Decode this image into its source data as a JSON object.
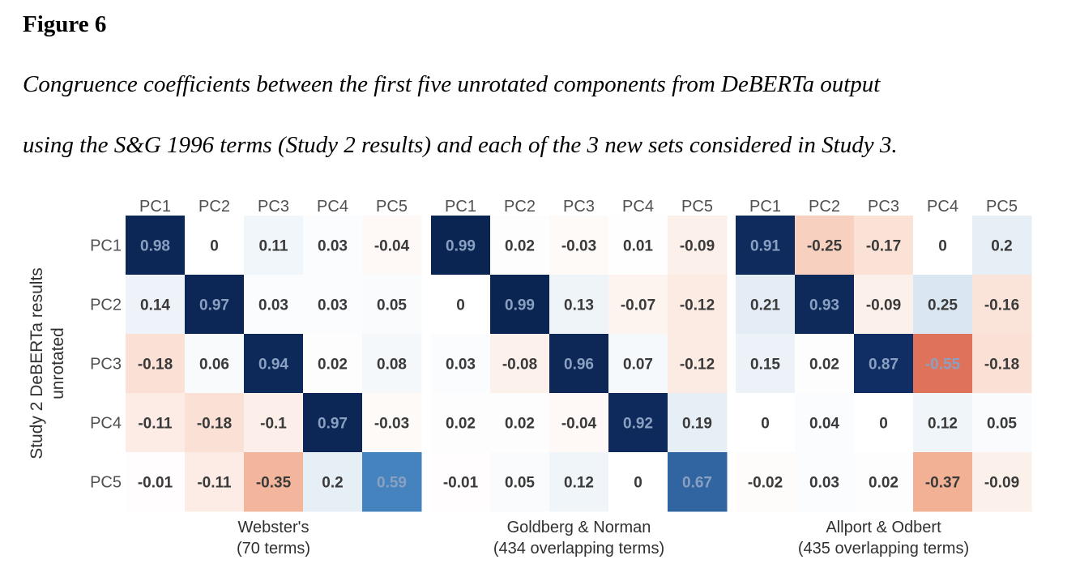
{
  "figure_label": "Figure 6",
  "caption_line1": "Congruence coefficients between the first five unrotated components from DeBERTa output",
  "caption_line2": "using the S&G 1996 terms (Study 2 results) and each of the 3 new sets considered in Study 3.",
  "chart_data": {
    "type": "heatmap",
    "y_axis_label_line1": "Study 2 DeBERTa results",
    "y_axis_label_line2": "unrotated",
    "row_labels": [
      "PC1",
      "PC2",
      "PC3",
      "PC4",
      "PC5"
    ],
    "col_labels": [
      "PC1",
      "PC2",
      "PC3",
      "PC4",
      "PC5"
    ],
    "color_scale": {
      "negative": "#c8442f",
      "zero": "#ffffff",
      "positive": "#0b2452"
    },
    "panels": [
      {
        "name_line1": "Webster's",
        "name_line2": "(70 terms)",
        "values": [
          [
            0.98,
            0,
            0.11,
            0.03,
            -0.04
          ],
          [
            0.14,
            0.97,
            0.03,
            0.03,
            0.05
          ],
          [
            -0.18,
            0.06,
            0.94,
            0.02,
            0.08
          ],
          [
            -0.11,
            -0.18,
            -0.1,
            0.97,
            -0.03
          ],
          [
            -0.01,
            -0.11,
            -0.35,
            0.2,
            0.59
          ]
        ]
      },
      {
        "name_line1": "Goldberg & Norman",
        "name_line2": "(434 overlapping terms)",
        "values": [
          [
            0.99,
            0.02,
            -0.03,
            0.01,
            -0.09
          ],
          [
            0,
            0.99,
            0.13,
            -0.07,
            -0.12
          ],
          [
            0.03,
            -0.08,
            0.96,
            0.07,
            -0.12
          ],
          [
            0.02,
            0.02,
            -0.04,
            0.92,
            0.19
          ],
          [
            -0.01,
            0.05,
            0.12,
            0,
            0.67
          ]
        ]
      },
      {
        "name_line1": "Allport & Odbert",
        "name_line2": "(435 overlapping terms)",
        "values": [
          [
            0.91,
            -0.25,
            -0.17,
            0,
            0.2
          ],
          [
            0.21,
            0.93,
            -0.09,
            0.25,
            -0.16
          ],
          [
            0.15,
            0.02,
            0.87,
            -0.55,
            -0.18
          ],
          [
            0,
            0.04,
            0,
            0.12,
            0.05
          ],
          [
            -0.02,
            0.03,
            0.02,
            -0.37,
            -0.09
          ]
        ]
      }
    ]
  }
}
